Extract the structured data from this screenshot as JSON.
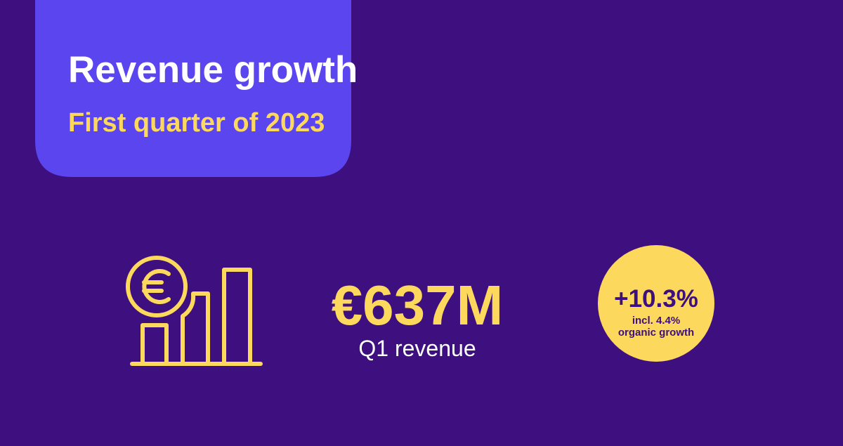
{
  "header": {
    "title": "Revenue growth",
    "subtitle": "First quarter of 2023"
  },
  "kpi": {
    "value": "€637M",
    "label": "Q1 revenue"
  },
  "badge": {
    "value": "+10.3%",
    "note_lines": [
      "incl. 4.4%",
      "organic growth"
    ]
  }
}
